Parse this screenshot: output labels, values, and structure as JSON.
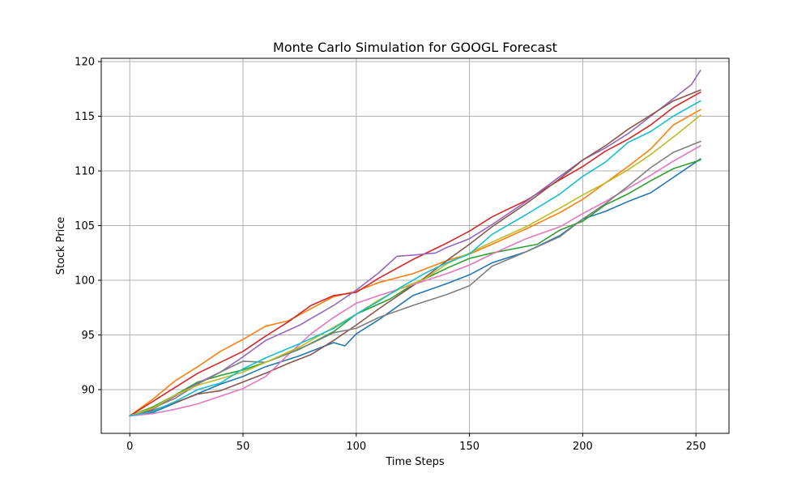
{
  "chart_data": {
    "type": "line",
    "title": "Monte Carlo Simulation for GOOGL Forecast",
    "xlabel": "Time Steps",
    "ylabel": "Stock Price",
    "xlim": [
      -12.6,
      264.6
    ],
    "ylim": [
      86.0,
      120.3
    ],
    "xticks": [
      0,
      50,
      100,
      150,
      200,
      250
    ],
    "yticks": [
      90,
      95,
      100,
      105,
      110,
      115,
      120
    ],
    "grid": true,
    "series": [
      {
        "color": "#1f77b4",
        "values": [
          [
            0,
            87.6
          ],
          [
            10,
            87.9
          ],
          [
            25,
            89.2
          ],
          [
            40,
            90.5
          ],
          [
            50,
            91.2
          ],
          [
            60,
            92.1
          ],
          [
            75,
            93.1
          ],
          [
            90,
            94.3
          ],
          [
            95,
            94.0
          ],
          [
            100,
            95.1
          ],
          [
            110,
            96.4
          ],
          [
            125,
            98.6
          ],
          [
            140,
            99.7
          ],
          [
            150,
            100.5
          ],
          [
            160,
            101.6
          ],
          [
            175,
            102.6
          ],
          [
            190,
            104.1
          ],
          [
            200,
            105.6
          ],
          [
            210,
            106.3
          ],
          [
            220,
            107.2
          ],
          [
            230,
            108.0
          ],
          [
            240,
            109.4
          ],
          [
            252,
            111.1
          ]
        ]
      },
      {
        "color": "#ff7f0e",
        "values": [
          [
            0,
            87.6
          ],
          [
            10,
            89.1
          ],
          [
            20,
            90.8
          ],
          [
            30,
            92.1
          ],
          [
            40,
            93.5
          ],
          [
            50,
            94.6
          ],
          [
            60,
            95.8
          ],
          [
            70,
            96.3
          ],
          [
            80,
            97.4
          ],
          [
            90,
            98.5
          ],
          [
            100,
            99.0
          ],
          [
            110,
            99.8
          ],
          [
            125,
            100.6
          ],
          [
            140,
            101.8
          ],
          [
            150,
            102.4
          ],
          [
            160,
            103.3
          ],
          [
            175,
            104.7
          ],
          [
            190,
            106.2
          ],
          [
            200,
            107.4
          ],
          [
            210,
            108.9
          ],
          [
            220,
            110.4
          ],
          [
            230,
            112.0
          ],
          [
            240,
            114.2
          ],
          [
            252,
            115.6
          ]
        ]
      },
      {
        "color": "#2ca02c",
        "values": [
          [
            0,
            87.6
          ],
          [
            10,
            88.4
          ],
          [
            20,
            89.5
          ],
          [
            30,
            90.7
          ],
          [
            40,
            91.3
          ],
          [
            50,
            91.8
          ],
          [
            60,
            92.5
          ],
          [
            75,
            93.7
          ],
          [
            90,
            95.3
          ],
          [
            100,
            96.9
          ],
          [
            115,
            98.3
          ],
          [
            125,
            99.6
          ],
          [
            140,
            101.1
          ],
          [
            150,
            102.0
          ],
          [
            160,
            102.5
          ],
          [
            170,
            102.9
          ],
          [
            180,
            103.3
          ],
          [
            190,
            104.6
          ],
          [
            200,
            105.4
          ],
          [
            210,
            106.9
          ],
          [
            220,
            107.9
          ],
          [
            230,
            109.1
          ],
          [
            240,
            110.2
          ],
          [
            252,
            111.0
          ]
        ]
      },
      {
        "color": "#d62728",
        "values": [
          [
            0,
            87.6
          ],
          [
            10,
            88.9
          ],
          [
            20,
            90.2
          ],
          [
            30,
            91.5
          ],
          [
            40,
            92.5
          ],
          [
            50,
            93.5
          ],
          [
            60,
            94.9
          ],
          [
            70,
            96.2
          ],
          [
            80,
            97.7
          ],
          [
            90,
            98.6
          ],
          [
            100,
            98.9
          ],
          [
            110,
            100.2
          ],
          [
            125,
            101.9
          ],
          [
            140,
            103.4
          ],
          [
            150,
            104.5
          ],
          [
            160,
            105.8
          ],
          [
            175,
            107.3
          ],
          [
            190,
            109.2
          ],
          [
            200,
            110.4
          ],
          [
            210,
            111.8
          ],
          [
            220,
            112.9
          ],
          [
            230,
            114.2
          ],
          [
            240,
            115.8
          ],
          [
            252,
            117.2
          ]
        ]
      },
      {
        "color": "#9467bd",
        "values": [
          [
            0,
            87.6
          ],
          [
            10,
            88.2
          ],
          [
            20,
            89.4
          ],
          [
            30,
            90.6
          ],
          [
            40,
            91.6
          ],
          [
            50,
            93.0
          ],
          [
            60,
            94.5
          ],
          [
            75,
            95.9
          ],
          [
            90,
            97.7
          ],
          [
            100,
            99.1
          ],
          [
            110,
            100.7
          ],
          [
            118,
            102.2
          ],
          [
            125,
            102.3
          ],
          [
            135,
            102.5
          ],
          [
            140,
            103.0
          ],
          [
            150,
            103.8
          ],
          [
            160,
            105.1
          ],
          [
            175,
            107.2
          ],
          [
            190,
            109.5
          ],
          [
            200,
            111.0
          ],
          [
            210,
            112.1
          ],
          [
            220,
            113.4
          ],
          [
            230,
            115.0
          ],
          [
            240,
            116.6
          ],
          [
            248,
            117.9
          ],
          [
            252,
            119.2
          ]
        ]
      },
      {
        "color": "#8c564b",
        "values": [
          [
            0,
            87.6
          ],
          [
            10,
            88.1
          ],
          [
            20,
            88.8
          ],
          [
            30,
            89.6
          ],
          [
            40,
            89.9
          ],
          [
            50,
            90.7
          ],
          [
            60,
            91.5
          ],
          [
            70,
            92.4
          ],
          [
            80,
            93.2
          ],
          [
            90,
            94.5
          ],
          [
            100,
            95.9
          ],
          [
            110,
            97.4
          ],
          [
            120,
            98.8
          ],
          [
            130,
            100.2
          ],
          [
            140,
            101.8
          ],
          [
            150,
            103.3
          ],
          [
            160,
            104.9
          ],
          [
            175,
            107.0
          ],
          [
            190,
            109.3
          ],
          [
            200,
            111.0
          ],
          [
            210,
            112.3
          ],
          [
            220,
            113.8
          ],
          [
            230,
            115.1
          ],
          [
            240,
            116.4
          ],
          [
            252,
            117.4
          ]
        ]
      },
      {
        "color": "#e377c2",
        "values": [
          [
            0,
            87.6
          ],
          [
            10,
            87.8
          ],
          [
            20,
            88.2
          ],
          [
            30,
            88.7
          ],
          [
            40,
            89.4
          ],
          [
            50,
            90.1
          ],
          [
            60,
            91.2
          ],
          [
            70,
            93.2
          ],
          [
            80,
            95.1
          ],
          [
            90,
            96.6
          ],
          [
            100,
            97.9
          ],
          [
            110,
            98.6
          ],
          [
            125,
            99.6
          ],
          [
            140,
            100.6
          ],
          [
            150,
            101.4
          ],
          [
            160,
            102.4
          ],
          [
            175,
            103.8
          ],
          [
            190,
            104.9
          ],
          [
            200,
            106.1
          ],
          [
            210,
            107.2
          ],
          [
            220,
            108.4
          ],
          [
            230,
            109.6
          ],
          [
            240,
            110.9
          ],
          [
            252,
            112.3
          ]
        ]
      },
      {
        "color": "#7f7f7f",
        "values": [
          [
            0,
            87.6
          ],
          [
            10,
            88.3
          ],
          [
            20,
            89.2
          ],
          [
            30,
            90.5
          ],
          [
            40,
            91.6
          ],
          [
            50,
            92.6
          ],
          [
            60,
            92.5
          ],
          [
            70,
            93.3
          ],
          [
            80,
            94.2
          ],
          [
            90,
            95.2
          ],
          [
            100,
            95.6
          ],
          [
            110,
            96.6
          ],
          [
            125,
            97.7
          ],
          [
            140,
            98.7
          ],
          [
            150,
            99.5
          ],
          [
            160,
            101.3
          ],
          [
            175,
            102.6
          ],
          [
            190,
            104.0
          ],
          [
            200,
            105.6
          ],
          [
            210,
            107.0
          ],
          [
            220,
            108.6
          ],
          [
            230,
            110.3
          ],
          [
            240,
            111.7
          ],
          [
            252,
            112.7
          ]
        ]
      },
      {
        "color": "#bcbd22",
        "values": [
          [
            0,
            87.6
          ],
          [
            10,
            88.3
          ],
          [
            20,
            89.5
          ],
          [
            30,
            90.4
          ],
          [
            40,
            91.0
          ],
          [
            50,
            91.6
          ],
          [
            60,
            92.5
          ],
          [
            75,
            93.9
          ],
          [
            90,
            95.7
          ],
          [
            100,
            96.9
          ],
          [
            110,
            98.2
          ],
          [
            120,
            99.3
          ],
          [
            130,
            100.1
          ],
          [
            140,
            101.5
          ],
          [
            150,
            102.5
          ],
          [
            160,
            103.5
          ],
          [
            175,
            104.9
          ],
          [
            190,
            106.6
          ],
          [
            200,
            107.8
          ],
          [
            210,
            108.9
          ],
          [
            220,
            110.1
          ],
          [
            230,
            111.5
          ],
          [
            240,
            113.1
          ],
          [
            252,
            115.1
          ]
        ]
      },
      {
        "color": "#17becf",
        "values": [
          [
            0,
            87.6
          ],
          [
            10,
            88.0
          ],
          [
            20,
            88.9
          ],
          [
            30,
            90.0
          ],
          [
            40,
            90.6
          ],
          [
            50,
            91.9
          ],
          [
            60,
            92.9
          ],
          [
            75,
            94.2
          ],
          [
            90,
            95.6
          ],
          [
            100,
            96.9
          ],
          [
            110,
            98.1
          ],
          [
            120,
            99.4
          ],
          [
            130,
            100.6
          ],
          [
            140,
            101.6
          ],
          [
            150,
            102.4
          ],
          [
            160,
            104.2
          ],
          [
            175,
            106.0
          ],
          [
            190,
            107.9
          ],
          [
            200,
            109.5
          ],
          [
            210,
            110.8
          ],
          [
            220,
            112.6
          ],
          [
            230,
            113.6
          ],
          [
            240,
            115.0
          ],
          [
            252,
            116.4
          ]
        ]
      }
    ]
  }
}
